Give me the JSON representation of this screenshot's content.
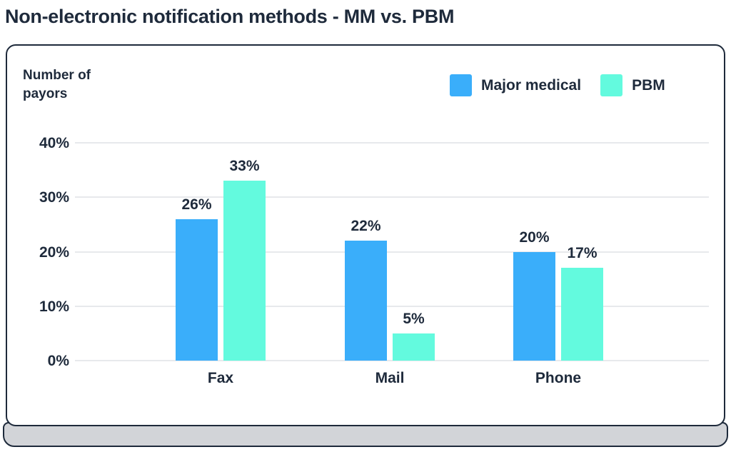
{
  "title": "Non-electronic notification methods - MM vs. PBM",
  "chart_data": {
    "type": "bar",
    "title": "Non-electronic notification methods - MM vs. PBM",
    "ylabel": "Number of payors",
    "xlabel": "",
    "categories": [
      "Fax",
      "Mail",
      "Phone"
    ],
    "series": [
      {
        "name": "Major medical",
        "color": "#3aaefa",
        "values": [
          26,
          22,
          20
        ]
      },
      {
        "name": "PBM",
        "color": "#63fade",
        "values": [
          33,
          5,
          17
        ]
      }
    ],
    "ylim": [
      0,
      40
    ],
    "yticks": [
      0,
      10,
      20,
      30,
      40
    ],
    "ytick_format": "{v}%",
    "value_label_format": "{v}%",
    "grid": true,
    "legend_position": "top-right"
  },
  "colors": {
    "text": "#1e2a3b",
    "card_border": "#1e2a3b",
    "card_background": "#ffffff",
    "card_base": "#d2d4d8",
    "gridline": "#e7e9ec"
  }
}
